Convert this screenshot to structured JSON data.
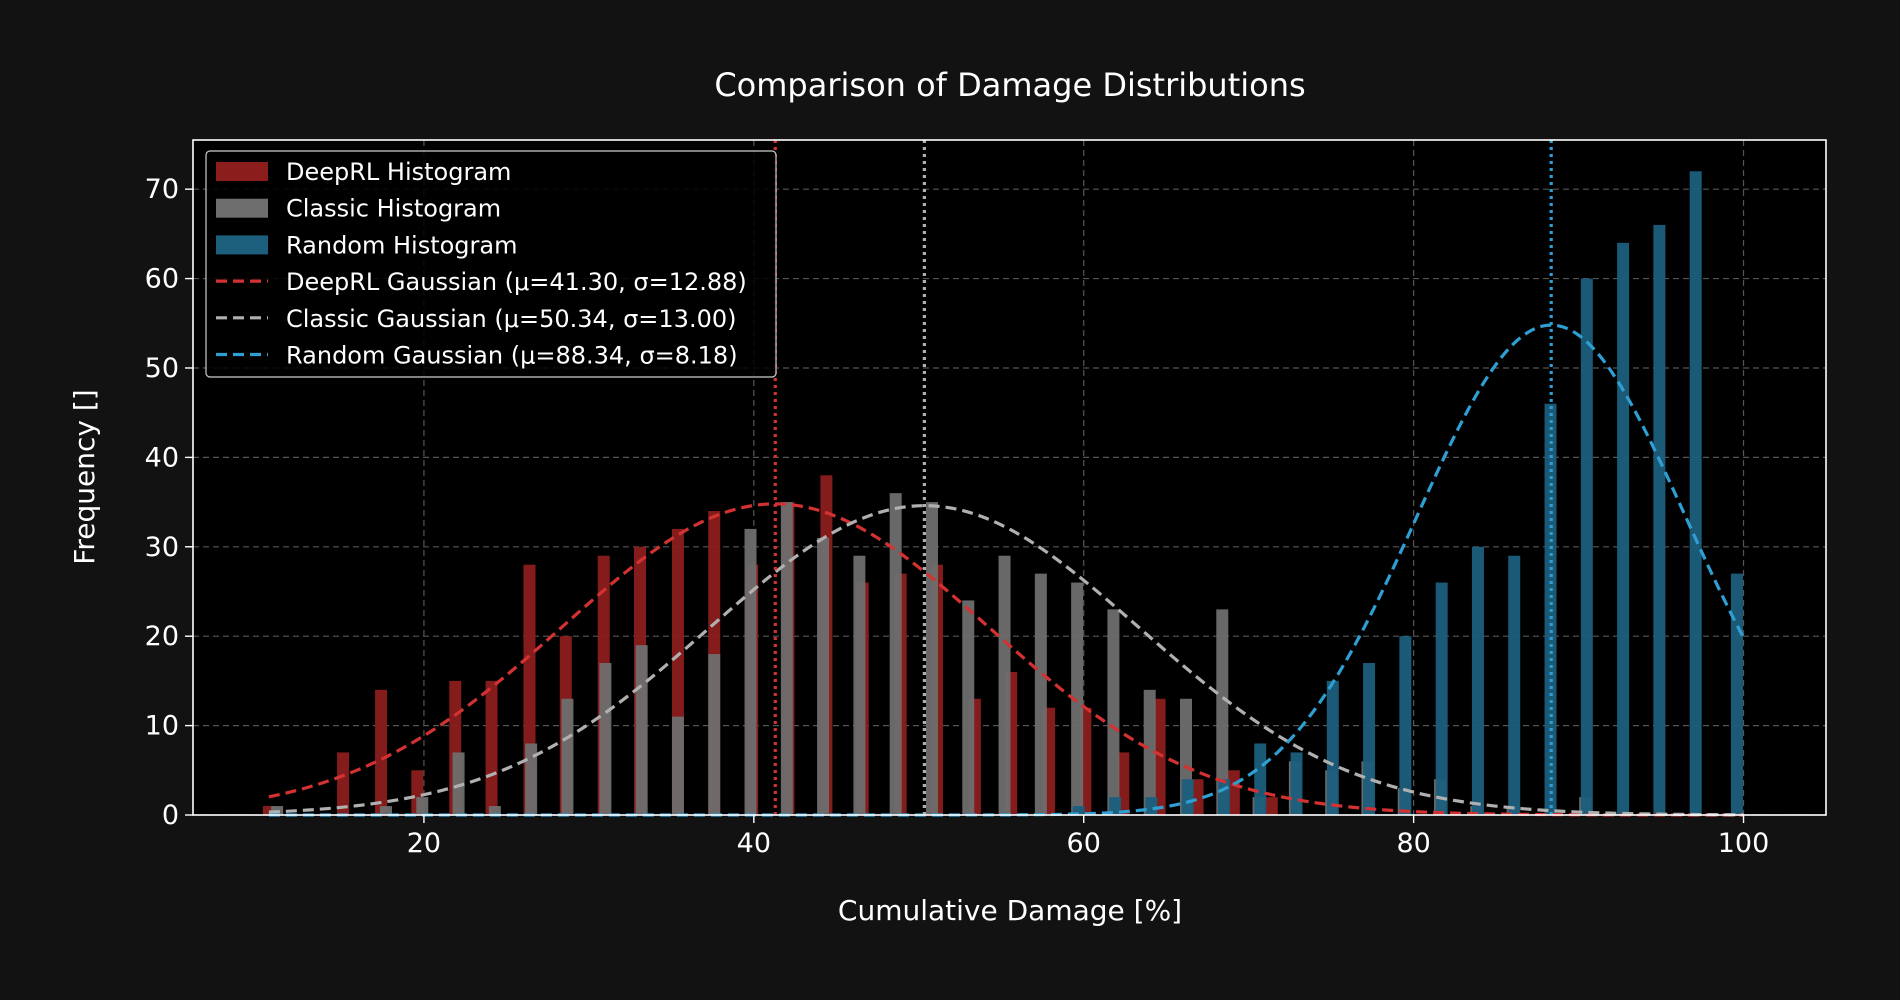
{
  "chart_data": {
    "type": "bar",
    "title": "Comparison of Damage Distributions",
    "xlabel": "Cumulative Damage [%]",
    "ylabel": "Frequency []",
    "xlim": [
      6,
      105
    ],
    "ylim": [
      0,
      75.5
    ],
    "xticks": [
      20,
      40,
      60,
      80,
      100
    ],
    "yticks": [
      0,
      10,
      20,
      30,
      40,
      50,
      60,
      70
    ],
    "grid": true,
    "legend_position": "top-left",
    "colors": {
      "deeprl": "#8b1d1d",
      "classic": "#6e6e6e",
      "random": "#1b5f7d",
      "deeprl_line": "#d43232",
      "classic_line": "#b0b0b0",
      "random_line": "#2f9fd3",
      "background": "#000000",
      "figure": "#121212"
    },
    "series": [
      {
        "name": "DeepRL Histogram",
        "key": "deeprl",
        "x": [
          10.6,
          15.1,
          17.4,
          19.6,
          21.9,
          24.1,
          26.4,
          28.6,
          30.9,
          33.1,
          35.4,
          37.6,
          39.9,
          42.1,
          44.4,
          46.6,
          48.9,
          51.1,
          53.4,
          55.6,
          57.9,
          60.1,
          62.4,
          64.6,
          66.9,
          69.1,
          71.4
        ],
        "values": [
          1,
          7,
          14,
          5,
          15,
          15,
          28,
          20,
          29,
          30,
          32,
          34,
          28,
          35,
          38,
          26,
          27,
          28,
          13,
          16,
          12,
          12,
          7,
          13,
          4,
          5,
          2
        ]
      },
      {
        "name": "Classic Histogram",
        "key": "classic",
        "x": [
          11.1,
          15.5,
          17.7,
          19.9,
          22.1,
          24.3,
          26.5,
          28.7,
          31.0,
          33.2,
          35.4,
          37.6,
          39.8,
          42.0,
          44.2,
          46.4,
          48.6,
          50.8,
          53.0,
          55.2,
          57.4,
          59.6,
          61.8,
          64.0,
          66.2,
          68.4,
          70.6,
          72.8,
          75.0,
          77.2,
          79.4,
          81.6,
          83.8,
          86.0,
          88.2,
          90.4,
          92.6
        ],
        "values": [
          1,
          0,
          1,
          2,
          7,
          1,
          8,
          13,
          17,
          19,
          11,
          18,
          32,
          35,
          31,
          29,
          36,
          35,
          24,
          29,
          27,
          26,
          23,
          14,
          13,
          23,
          2,
          6,
          5,
          6,
          3,
          4,
          1,
          1,
          0,
          2,
          0
        ]
      },
      {
        "name": "Random Histogram",
        "key": "random",
        "x": [
          59.7,
          61.9,
          64.1,
          66.3,
          68.5,
          70.7,
          72.9,
          75.1,
          77.3,
          79.5,
          81.7,
          83.9,
          86.1,
          88.3,
          90.5,
          92.7,
          94.9,
          97.1,
          99.6
        ],
        "values": [
          1,
          2,
          2,
          4,
          4,
          8,
          7,
          15,
          17,
          20,
          26,
          30,
          29,
          46,
          60,
          64,
          66,
          72,
          27
        ]
      }
    ],
    "gaussians": [
      {
        "name": "DeepRL Gaussian (μ=41.30, σ=12.88)",
        "key": "deeprl_line",
        "mu": 41.3,
        "sigma": 12.88,
        "peak": 34.8
      },
      {
        "name": "Classic Gaussian (μ=50.34, σ=13.00)",
        "key": "classic_line",
        "mu": 50.34,
        "sigma": 13.0,
        "peak": 34.6
      },
      {
        "name": "Random Gaussian (μ=88.34, σ=8.18)",
        "key": "random_line",
        "mu": 88.34,
        "sigma": 8.18,
        "peak": 54.8
      }
    ],
    "gaussian_x_range": [
      10.6,
      100
    ],
    "mean_lines": [
      {
        "x": 41.3,
        "key": "deeprl_line"
      },
      {
        "x": 50.34,
        "key": "classic_line"
      },
      {
        "x": 88.34,
        "key": "random_line"
      }
    ]
  }
}
